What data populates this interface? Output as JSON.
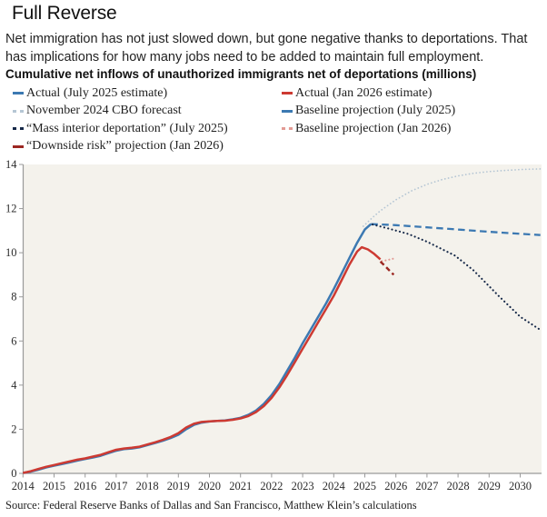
{
  "header": {
    "title": "Full Reverse",
    "description_lines": [
      "Net immigration has not just slowed down, but gone negative thanks to deportations. That",
      "has implications for how many jobs need to be added to maintain full employment."
    ],
    "chart_heading": "Cumulative net inflows of unauthorized immigrants net of deportations (millions)"
  },
  "legend": {
    "left_items": [
      {
        "label": "Actual (July 2025 estimate)",
        "series": "actual-jul2025"
      },
      {
        "label": "November 2024 CBO forecast",
        "series": "cbo-nov2024"
      },
      {
        "label": "“Mass interior deportation” (July 2025)",
        "series": "mass-deportation-jul2025"
      },
      {
        "label": "“Downside risk” projection (Jan 2026)",
        "series": "downside-jan2026"
      }
    ],
    "right_items": [
      {
        "label": "Actual (Jan 2026 estimate)",
        "series": "actual-jan2026"
      },
      {
        "label": "Baseline projection (July 2025)",
        "series": "baseline-jul2025"
      },
      {
        "label": "Baseline projection (Jan 2026)",
        "series": "baseline-jan2026"
      }
    ]
  },
  "chart_data": {
    "type": "line",
    "title": "Cumulative net inflows of unauthorized immigrants net of deportations (millions)",
    "xlabel": "",
    "ylabel": "",
    "xlim": [
      2014,
      2030.7
    ],
    "ylim": [
      0,
      14
    ],
    "yticks": [
      0,
      2,
      4,
      6,
      8,
      10,
      12,
      14
    ],
    "xticks": [
      2014,
      2015,
      2016,
      2017,
      2018,
      2019,
      2020,
      2021,
      2022,
      2023,
      2024,
      2025,
      2026,
      2027,
      2028,
      2029,
      2030
    ],
    "grid": false,
    "plot_background": "#f4f2ec",
    "axis_color": "#9a9a9a",
    "legend_position": "top",
    "series": [
      {
        "id": "cbo-nov2024",
        "name": "November 2024 CBO forecast",
        "color": "#b5c6d4",
        "style": "finedot",
        "points": [
          [
            2024.95,
            11.2
          ],
          [
            2025.25,
            11.6
          ],
          [
            2025.5,
            11.9
          ],
          [
            2025.75,
            12.15
          ],
          [
            2026,
            12.4
          ],
          [
            2026.5,
            12.8
          ],
          [
            2027,
            13.1
          ],
          [
            2027.5,
            13.32
          ],
          [
            2028,
            13.48
          ],
          [
            2028.5,
            13.6
          ],
          [
            2029,
            13.68
          ],
          [
            2029.5,
            13.73
          ],
          [
            2030,
            13.77
          ],
          [
            2030.65,
            13.8
          ]
        ]
      },
      {
        "id": "baseline-jul2025",
        "name": "Baseline projection (July 2025)",
        "color": "#3c79b2",
        "style": "dash",
        "points": [
          [
            2025.2,
            11.3
          ],
          [
            2026,
            11.25
          ],
          [
            2027,
            11.15
          ],
          [
            2028,
            11.05
          ],
          [
            2029,
            10.95
          ],
          [
            2030,
            10.86
          ],
          [
            2030.65,
            10.8
          ]
        ]
      },
      {
        "id": "mass-deportation-jul2025",
        "name": "“Mass interior deportation” (July 2025)",
        "color": "#152848",
        "style": "dot",
        "points": [
          [
            2025.25,
            11.28
          ],
          [
            2025.75,
            11.1
          ],
          [
            2026.4,
            10.85
          ],
          [
            2027,
            10.5
          ],
          [
            2027.9,
            9.87
          ],
          [
            2028.5,
            9.2
          ],
          [
            2029.3,
            8.05
          ],
          [
            2030,
            7.1
          ],
          [
            2030.65,
            6.5
          ]
        ]
      },
      {
        "id": "baseline-jan2026",
        "name": "Baseline projection (Jan 2026)",
        "color": "#e39b95",
        "style": "pinkdot",
        "points": [
          [
            2025.55,
            9.62
          ],
          [
            2025.7,
            9.66
          ],
          [
            2025.85,
            9.71
          ],
          [
            2025.98,
            9.75
          ]
        ]
      },
      {
        "id": "downside-jan2026",
        "name": "“Downside risk” projection (Jan 2026)",
        "color": "#9c2722",
        "style": "shortdash",
        "points": [
          [
            2025.5,
            9.6
          ],
          [
            2025.65,
            9.4
          ],
          [
            2025.8,
            9.18
          ],
          [
            2025.93,
            9.0
          ]
        ]
      },
      {
        "id": "actual-jul2025",
        "name": "Actual (July 2025 estimate)",
        "color": "#3c79b2",
        "style": "solid",
        "points": [
          [
            2014,
            0.02
          ],
          [
            2014.25,
            0.08
          ],
          [
            2014.5,
            0.17
          ],
          [
            2014.75,
            0.27
          ],
          [
            2015,
            0.35
          ],
          [
            2015.25,
            0.42
          ],
          [
            2015.5,
            0.5
          ],
          [
            2015.75,
            0.58
          ],
          [
            2016,
            0.65
          ],
          [
            2016.25,
            0.72
          ],
          [
            2016.5,
            0.8
          ],
          [
            2016.75,
            0.92
          ],
          [
            2017,
            1.03
          ],
          [
            2017.25,
            1.1
          ],
          [
            2017.5,
            1.13
          ],
          [
            2017.75,
            1.18
          ],
          [
            2018,
            1.28
          ],
          [
            2018.25,
            1.38
          ],
          [
            2018.5,
            1.48
          ],
          [
            2018.75,
            1.6
          ],
          [
            2019,
            1.75
          ],
          [
            2019.25,
            2.0
          ],
          [
            2019.5,
            2.2
          ],
          [
            2019.75,
            2.3
          ],
          [
            2020,
            2.35
          ],
          [
            2020.25,
            2.38
          ],
          [
            2020.5,
            2.4
          ],
          [
            2020.75,
            2.45
          ],
          [
            2021,
            2.52
          ],
          [
            2021.25,
            2.65
          ],
          [
            2021.5,
            2.85
          ],
          [
            2021.75,
            3.15
          ],
          [
            2022,
            3.55
          ],
          [
            2022.25,
            4.05
          ],
          [
            2022.5,
            4.65
          ],
          [
            2022.75,
            5.25
          ],
          [
            2023,
            5.9
          ],
          [
            2023.25,
            6.5
          ],
          [
            2023.5,
            7.1
          ],
          [
            2023.75,
            7.7
          ],
          [
            2024,
            8.35
          ],
          [
            2024.25,
            9.05
          ],
          [
            2024.5,
            9.75
          ],
          [
            2024.75,
            10.45
          ],
          [
            2025,
            11.05
          ],
          [
            2025.2,
            11.3
          ]
        ]
      },
      {
        "id": "actual-jan2026",
        "name": "Actual (Jan 2026 estimate)",
        "color": "#cd3a32",
        "style": "solid",
        "points": [
          [
            2014,
            0.02
          ],
          [
            2014.25,
            0.1
          ],
          [
            2014.5,
            0.2
          ],
          [
            2014.75,
            0.3
          ],
          [
            2015,
            0.38
          ],
          [
            2015.25,
            0.46
          ],
          [
            2015.5,
            0.54
          ],
          [
            2015.75,
            0.62
          ],
          [
            2016,
            0.68
          ],
          [
            2016.25,
            0.76
          ],
          [
            2016.5,
            0.84
          ],
          [
            2016.75,
            0.96
          ],
          [
            2017,
            1.07
          ],
          [
            2017.25,
            1.13
          ],
          [
            2017.5,
            1.16
          ],
          [
            2017.75,
            1.21
          ],
          [
            2018,
            1.31
          ],
          [
            2018.25,
            1.41
          ],
          [
            2018.5,
            1.52
          ],
          [
            2018.75,
            1.65
          ],
          [
            2019,
            1.82
          ],
          [
            2019.25,
            2.08
          ],
          [
            2019.5,
            2.25
          ],
          [
            2019.75,
            2.33
          ],
          [
            2020,
            2.36
          ],
          [
            2020.25,
            2.38
          ],
          [
            2020.5,
            2.39
          ],
          [
            2020.75,
            2.43
          ],
          [
            2021,
            2.49
          ],
          [
            2021.25,
            2.6
          ],
          [
            2021.5,
            2.78
          ],
          [
            2021.75,
            3.05
          ],
          [
            2022,
            3.42
          ],
          [
            2022.25,
            3.9
          ],
          [
            2022.5,
            4.45
          ],
          [
            2022.75,
            5.05
          ],
          [
            2023,
            5.65
          ],
          [
            2023.25,
            6.25
          ],
          [
            2023.5,
            6.85
          ],
          [
            2023.75,
            7.45
          ],
          [
            2024,
            8.05
          ],
          [
            2024.25,
            8.75
          ],
          [
            2024.5,
            9.45
          ],
          [
            2024.75,
            10.05
          ],
          [
            2024.9,
            10.25
          ],
          [
            2025.1,
            10.15
          ],
          [
            2025.3,
            9.95
          ],
          [
            2025.5,
            9.7
          ]
        ]
      }
    ]
  },
  "source": "Source: Federal Reserve Banks of Dallas and San Francisco, Matthew Klein’s calculations"
}
